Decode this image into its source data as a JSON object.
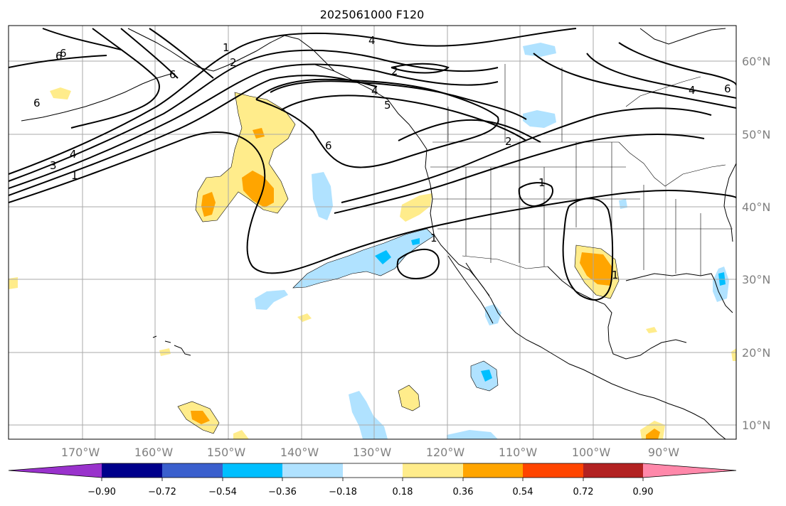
{
  "title": "2025061000 F120",
  "lat_labels": [
    "60°N",
    "50°N",
    "40°N",
    "30°N",
    "20°N",
    "10°N"
  ],
  "lon_labels": [
    "170°W",
    "160°W",
    "150°W",
    "140°W",
    "130°W",
    "120°W",
    "110°W",
    "100°W",
    "90°W"
  ],
  "colorbar": {
    "tick_labels": [
      "−0.90",
      "−0.72",
      "−0.54",
      "−0.36",
      "−0.18",
      "0.18",
      "0.36",
      "0.54",
      "0.72",
      "0.90"
    ],
    "colors": [
      "#9932cc",
      "#00008b",
      "#3a5fcd",
      "#00bfff",
      "#b0e2ff",
      "#ffffff",
      "#ffec8b",
      "#ffa500",
      "#ff4500",
      "#b22222",
      "#ff88aa"
    ]
  },
  "fill_colors": {
    "light_blue": "#b0e2ff",
    "blue": "#00bfff",
    "light_yellow": "#ffec8b",
    "orange": "#ffa500"
  },
  "contour_labels": [
    "6",
    "6",
    "4",
    "1",
    "2",
    "6",
    "4",
    "2",
    "5",
    "3",
    "6",
    "2",
    "4",
    "1",
    "6",
    "4",
    "1",
    "1",
    "1",
    "6"
  ]
}
